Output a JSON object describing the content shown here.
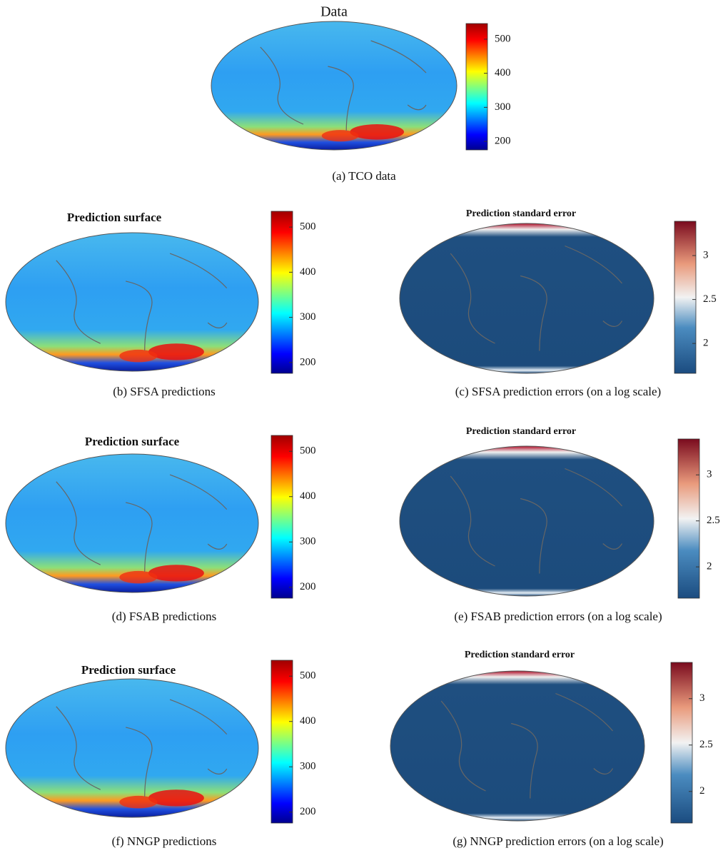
{
  "panels": [
    {
      "title": "Data",
      "caption": "(a)  TCO data",
      "colorbar": {
        "lim": [
          175,
          546
        ],
        "ticks": [
          200,
          300,
          400,
          500
        ]
      }
    },
    {
      "title": "Prediction surface",
      "caption": "(b)  SFSA predictions",
      "colorbar": {
        "lim": [
          176,
          535
        ],
        "ticks": [
          200,
          300,
          400,
          500
        ]
      }
    },
    {
      "title": "Prediction standard error",
      "caption": "(c)  SFSA prediction errors (on a log scale)",
      "colorbar": {
        "lim": [
          1.66,
          3.39
        ],
        "ticks": [
          2,
          2.5,
          3
        ]
      }
    },
    {
      "title": "Prediction surface",
      "caption": "(d)  FSAB predictions",
      "colorbar": {
        "lim": [
          176,
          535
        ],
        "ticks": [
          200,
          300,
          400,
          500
        ]
      }
    },
    {
      "title": "Prediction standard error",
      "caption": "(e)  FSAB prediction errors (on a log scale)",
      "colorbar": {
        "lim": [
          1.66,
          3.39
        ],
        "ticks": [
          2,
          2.5,
          3
        ]
      }
    },
    {
      "title": "Prediction surface",
      "caption": "(f)  NNGP predictions",
      "colorbar": {
        "lim": [
          176,
          535
        ],
        "ticks": [
          200,
          300,
          400,
          500
        ]
      }
    },
    {
      "title": "Prediction standard error",
      "caption": "(g)  NNGP prediction errors (on a log scale)",
      "colorbar": {
        "lim": [
          1.66,
          3.39
        ],
        "ticks": [
          2,
          2.5,
          3
        ]
      }
    }
  ]
}
